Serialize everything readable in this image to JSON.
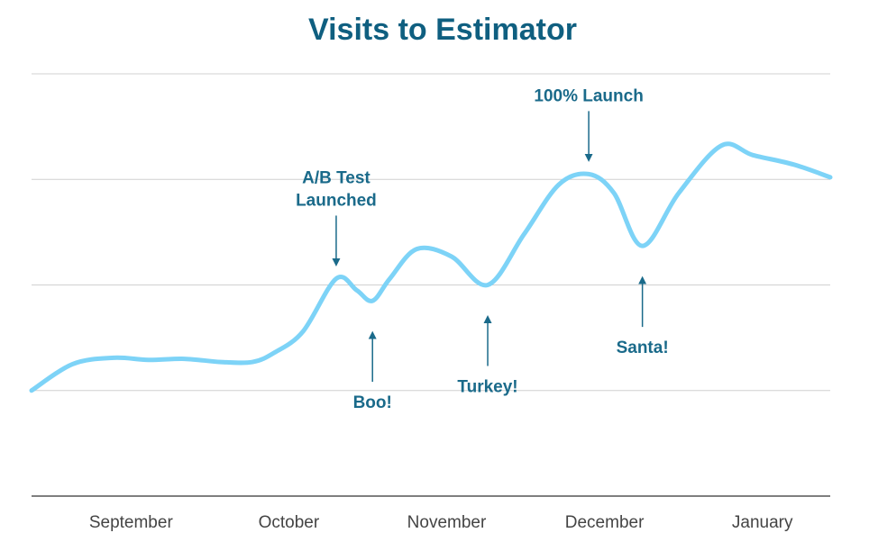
{
  "chart_data": {
    "type": "line",
    "title": "Visits to Estimator",
    "x": [
      0.37,
      0.63,
      0.89,
      1.11,
      1.34,
      1.57,
      1.77,
      1.91,
      2.09,
      2.3,
      2.43,
      2.53,
      2.64,
      2.81,
      3.03,
      3.26,
      3.49,
      3.71,
      3.9,
      4.06,
      4.24,
      4.47,
      4.74,
      4.94,
      5.2,
      5.43
    ],
    "series": [
      {
        "color": "#7dd3f7",
        "values": [
          1.0,
          1.25,
          1.31,
          1.29,
          1.3,
          1.27,
          1.27,
          1.36,
          1.56,
          2.06,
          1.95,
          1.85,
          2.06,
          2.34,
          2.27,
          2.0,
          2.48,
          2.95,
          3.05,
          2.87,
          2.37,
          2.87,
          3.32,
          3.23,
          3.14,
          3.02
        ]
      }
    ],
    "xlim": [
      0.37,
      5.43
    ],
    "xticks": [
      {
        "value": 1,
        "label": "September"
      },
      {
        "value": 2,
        "label": "October"
      },
      {
        "value": 3,
        "label": "November"
      },
      {
        "value": 4,
        "label": "December"
      },
      {
        "value": 5,
        "label": "January"
      }
    ],
    "ylim": [
      0,
      4
    ],
    "yticks": [
      0,
      1,
      2,
      3,
      4
    ],
    "grid": true,
    "annotations": [
      {
        "text": [
          "A/B Test",
          "Launched"
        ],
        "x": 2.3,
        "y": 2.06,
        "side": "above"
      },
      {
        "text": [
          "Boo!"
        ],
        "x": 2.53,
        "y": 1.85,
        "side": "below"
      },
      {
        "text": [
          "Turkey!"
        ],
        "x": 3.26,
        "y": 2.0,
        "side": "below"
      },
      {
        "text": [
          "100% Launch"
        ],
        "x": 3.9,
        "y": 3.05,
        "side": "above"
      },
      {
        "text": [
          "Santa!"
        ],
        "x": 4.24,
        "y": 2.37,
        "side": "below"
      }
    ]
  }
}
